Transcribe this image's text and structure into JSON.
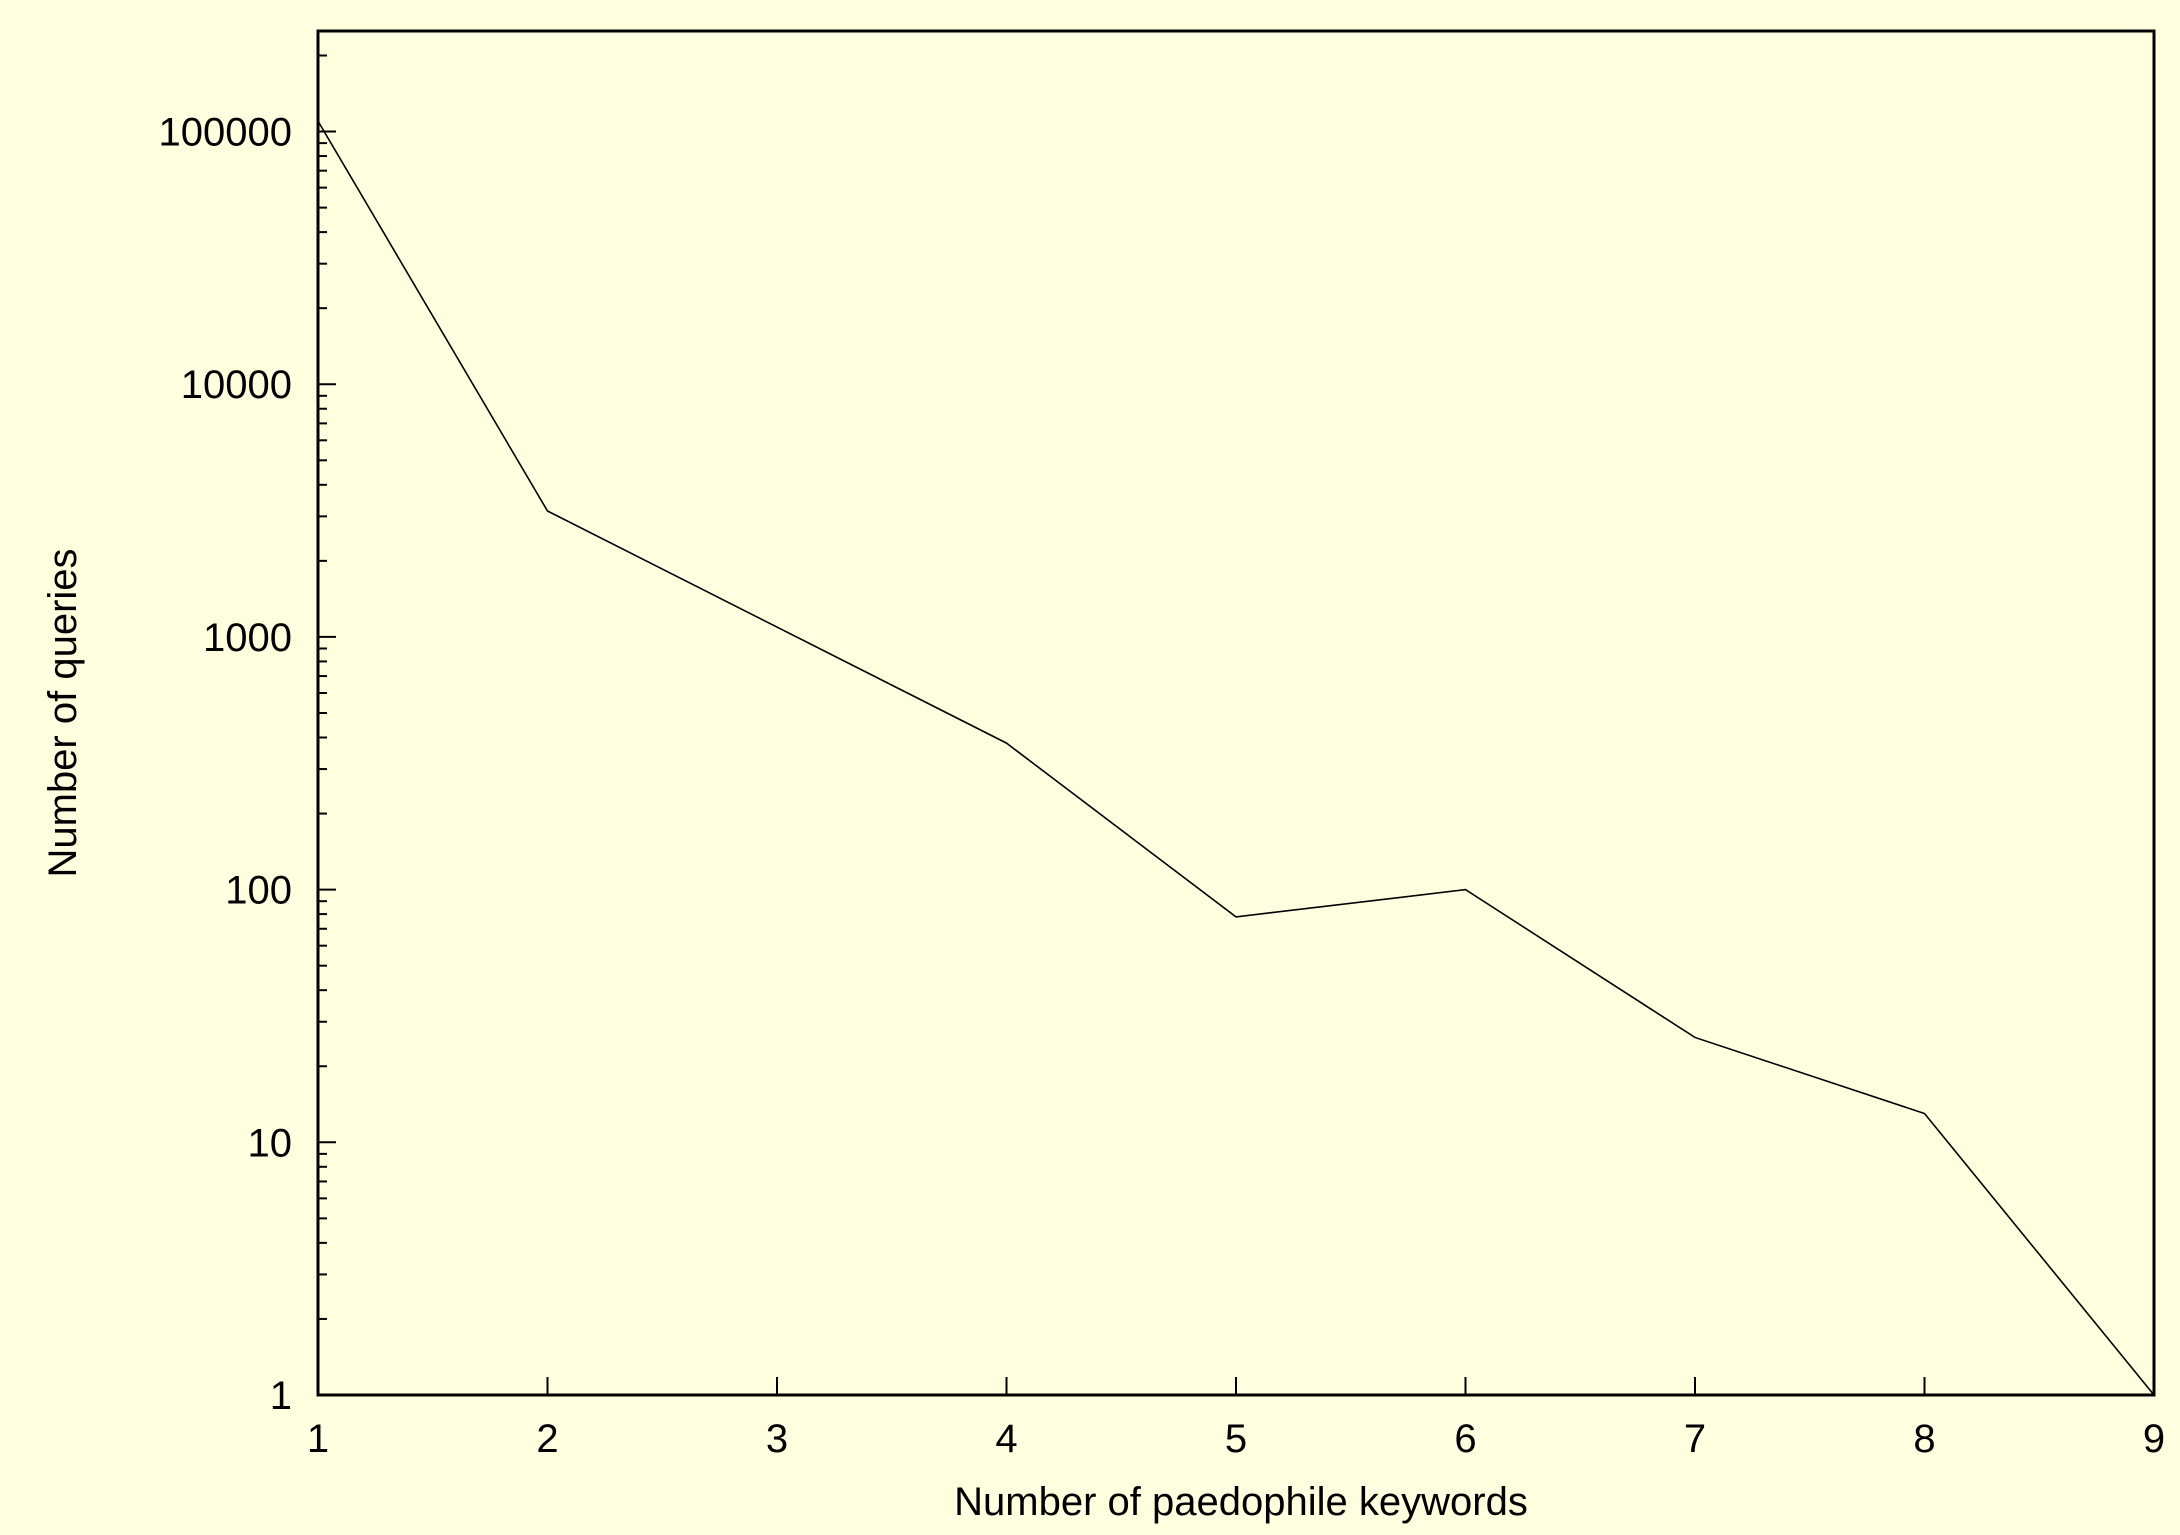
{
  "chart_data": {
    "type": "line",
    "title": "",
    "xlabel": "Number of paedophile keywords",
    "ylabel": "Number of queries",
    "xscale": "linear",
    "yscale": "log",
    "xlim": [
      1,
      9
    ],
    "ylim": [
      1,
      250000
    ],
    "grid": false,
    "legend": "none",
    "x_ticks": [
      "1",
      "2",
      "3",
      "4",
      "5",
      "6",
      "7",
      "8",
      "9"
    ],
    "y_ticks": [
      "1",
      "10",
      "100",
      "1000",
      "10000",
      "100000"
    ],
    "series": [
      {
        "x": [
          1,
          2,
          4,
          5,
          6,
          7,
          8,
          9
        ],
        "y": [
          110000,
          3150,
          380,
          78,
          100,
          26,
          13,
          1
        ]
      }
    ],
    "colors": {
      "background": "#ffffe0",
      "line": "#000000",
      "axis": "#000000"
    }
  }
}
